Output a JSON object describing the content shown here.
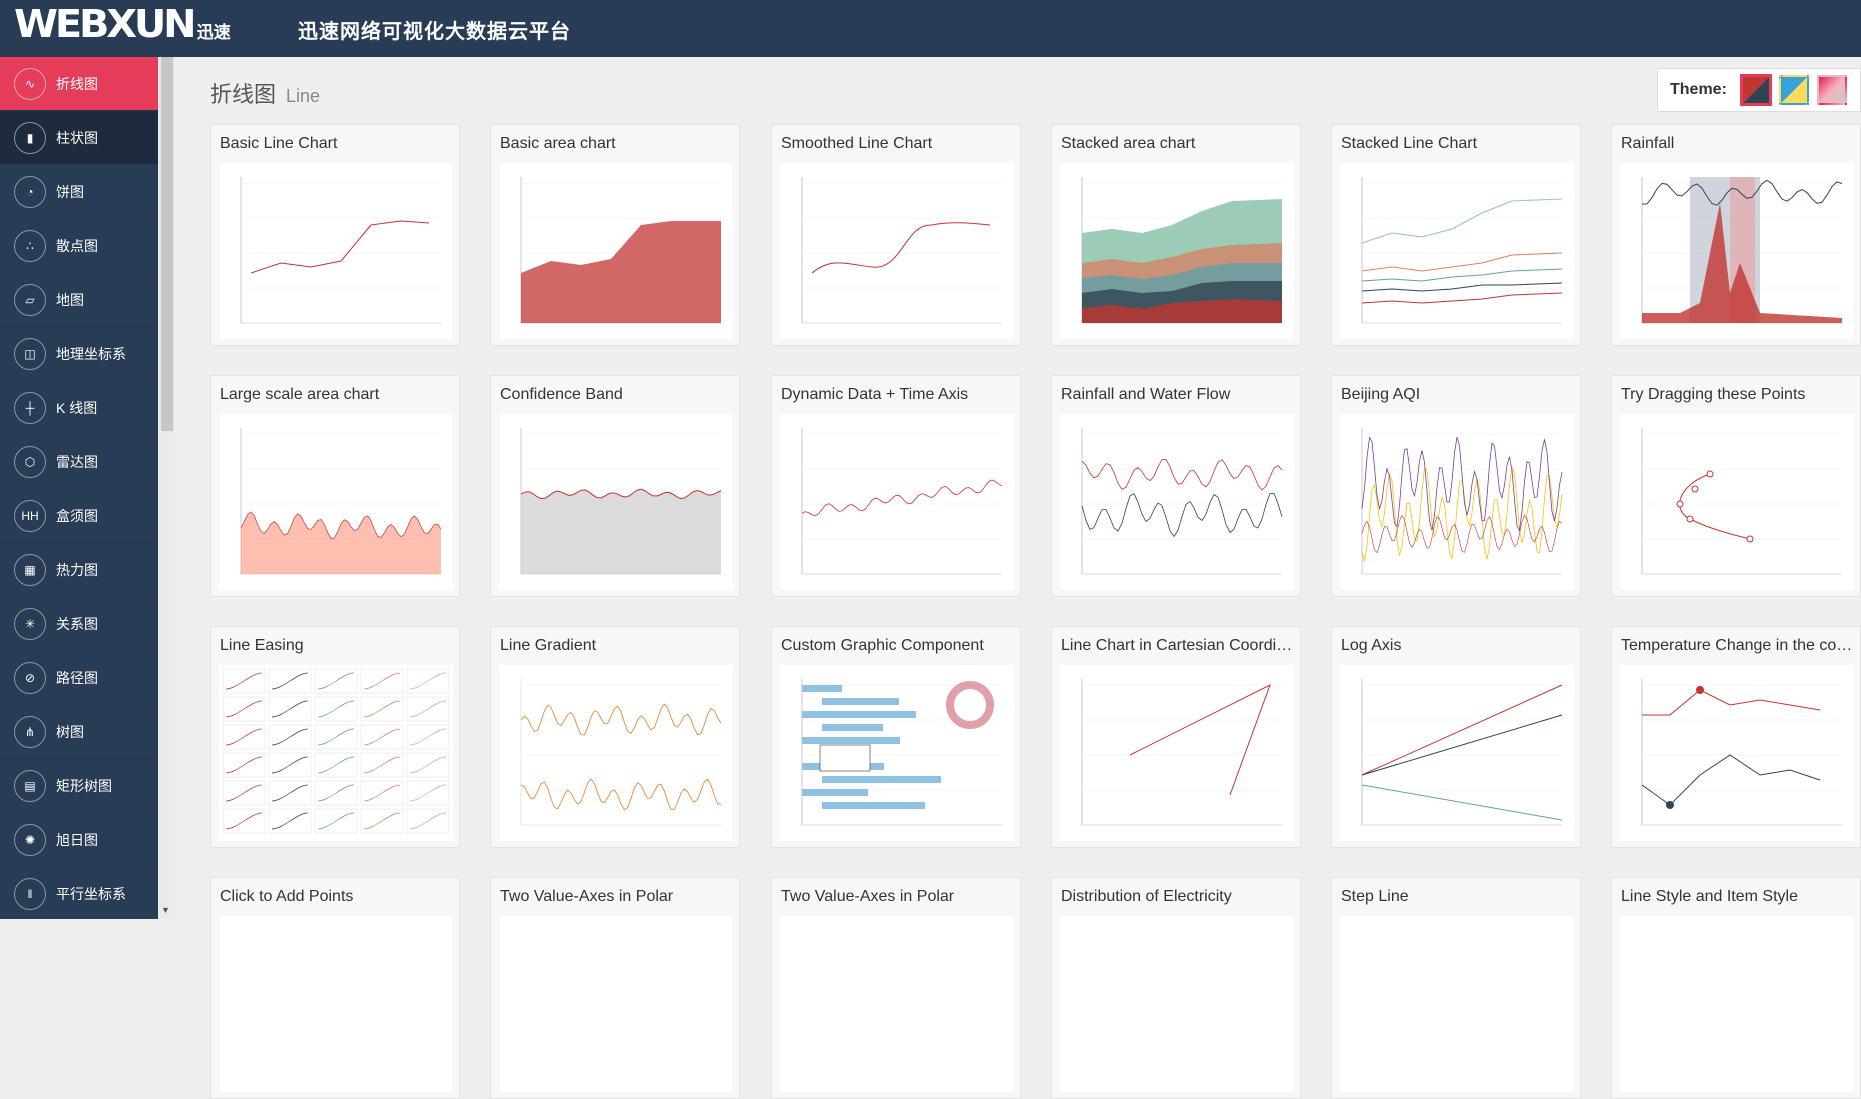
{
  "header": {
    "logo_text": "WEBXUN",
    "logo_cn": "迅速",
    "platform_title": "迅速网络可视化大数据云平台"
  },
  "sidebar": {
    "items": [
      {
        "label": "折线图",
        "icon": "line-chart-icon"
      },
      {
        "label": "柱状图",
        "icon": "bar-chart-icon"
      },
      {
        "label": "饼图",
        "icon": "pie-chart-icon"
      },
      {
        "label": "散点图",
        "icon": "scatter-icon"
      },
      {
        "label": "地图",
        "icon": "map-icon"
      },
      {
        "label": "地理坐标系",
        "icon": "geo-icon"
      },
      {
        "label": "K 线图",
        "icon": "candlestick-icon"
      },
      {
        "label": "雷达图",
        "icon": "radar-icon"
      },
      {
        "label": "盒须图",
        "icon": "boxplot-icon"
      },
      {
        "label": "热力图",
        "icon": "heatmap-icon"
      },
      {
        "label": "关系图",
        "icon": "graph-icon"
      },
      {
        "label": "路径图",
        "icon": "path-icon"
      },
      {
        "label": "树图",
        "icon": "tree-icon"
      },
      {
        "label": "矩形树图",
        "icon": "treemap-icon"
      },
      {
        "label": "旭日图",
        "icon": "sunburst-icon"
      },
      {
        "label": "平行坐标系",
        "icon": "parallel-icon"
      }
    ]
  },
  "page": {
    "title_cn": "折线图",
    "title_en": "Line"
  },
  "theme": {
    "label": "Theme:",
    "swatches": [
      "red-dark",
      "blue-yellow",
      "pink-gray"
    ]
  },
  "cards": [
    {
      "title": "Basic Line Chart"
    },
    {
      "title": "Basic area chart"
    },
    {
      "title": "Smoothed Line Chart"
    },
    {
      "title": "Stacked area chart"
    },
    {
      "title": "Stacked Line Chart"
    },
    {
      "title": "Rainfall"
    },
    {
      "title": "Large scale area chart"
    },
    {
      "title": "Confidence Band"
    },
    {
      "title": "Dynamic Data + Time Axis"
    },
    {
      "title": "Rainfall and Water Flow"
    },
    {
      "title": "Beijing AQI"
    },
    {
      "title": "Try Dragging these Points"
    },
    {
      "title": "Line Easing"
    },
    {
      "title": "Line Gradient"
    },
    {
      "title": "Custom Graphic Component"
    },
    {
      "title": "Line Chart in Cartesian Coordinate System"
    },
    {
      "title": "Log Axis"
    },
    {
      "title": "Temperature Change in the coming week"
    },
    {
      "title": "Click to Add Points"
    },
    {
      "title": "Two Value-Axes in Polar"
    },
    {
      "title": "Two Value-Axes in Polar"
    },
    {
      "title": "Distribution of Electricity"
    },
    {
      "title": "Step Line"
    },
    {
      "title": "Line Style and Item Style"
    }
  ]
}
